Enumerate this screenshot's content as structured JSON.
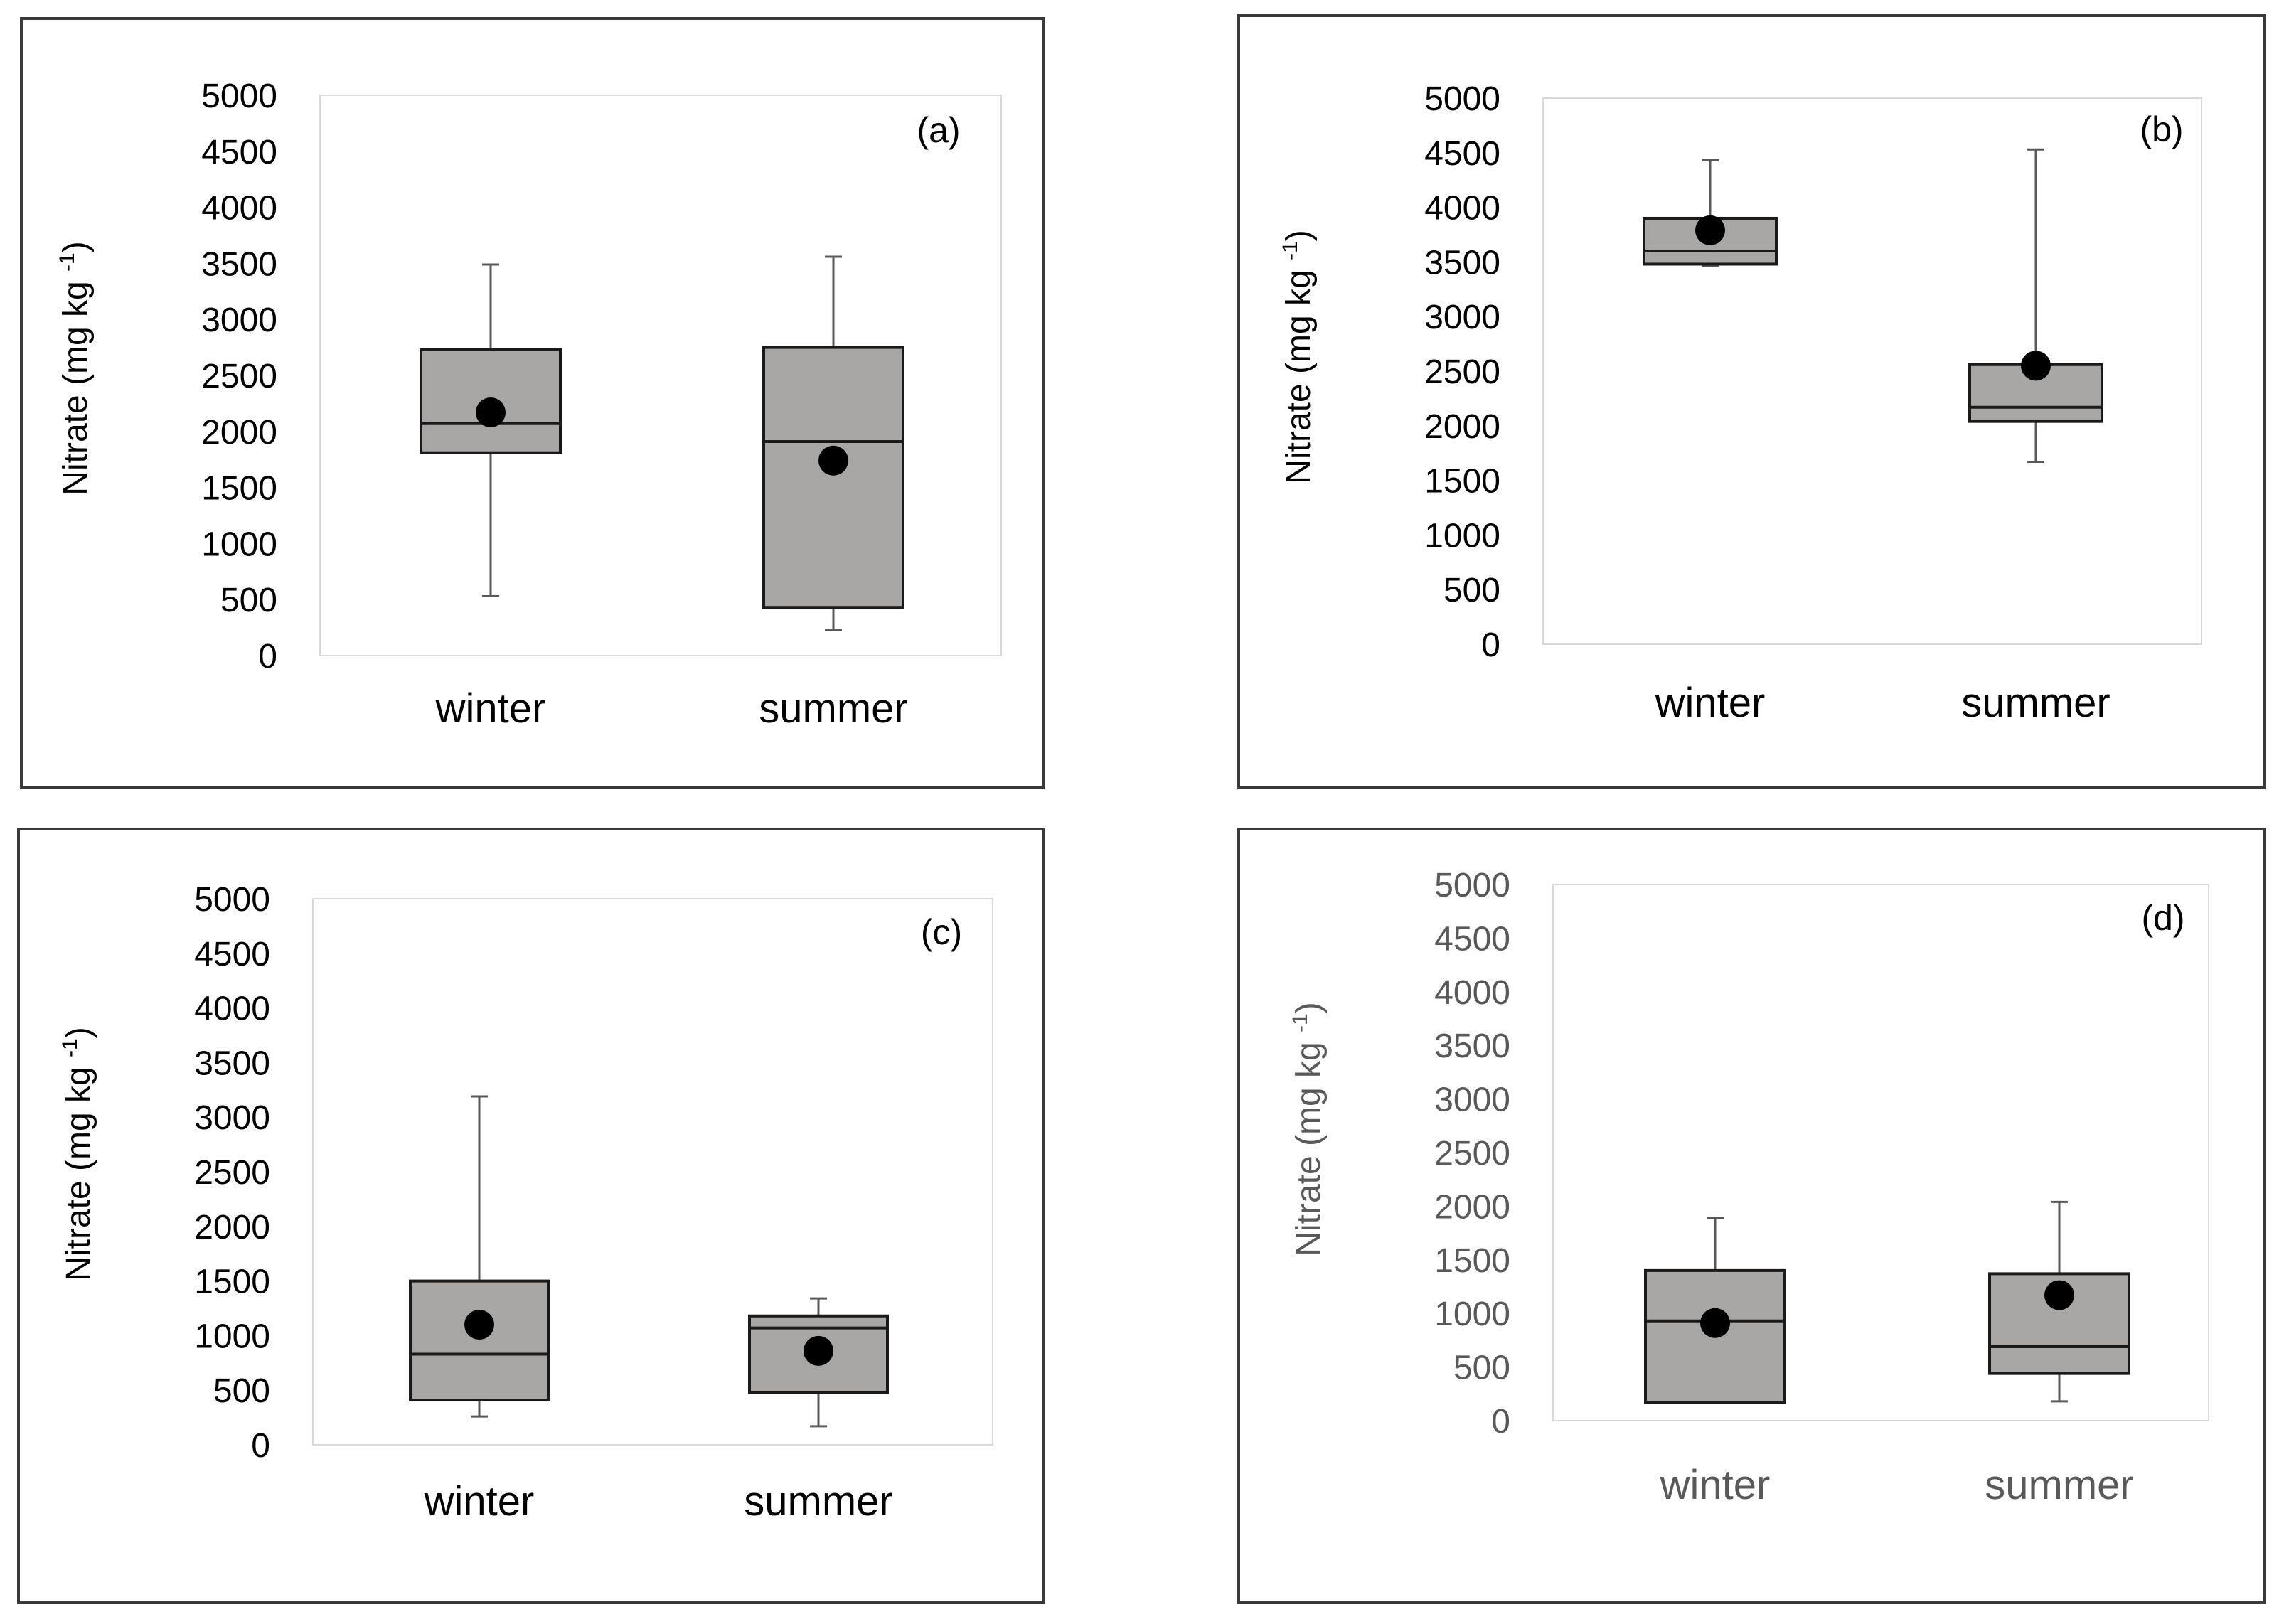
{
  "colors": {
    "box_fill": "#a9a6a6",
    "box_stroke": "#1a1a1a",
    "whisker": "#595959",
    "mean_marker": "#000000",
    "plot_border": "#d9d9d9",
    "text_dark": "#000000",
    "text_grey": "#595959"
  },
  "chart_data": [
    {
      "type": "box",
      "panel_label": "(a)",
      "ylabel": "Nitrate (mg kg",
      "ylabel_superscript": "-1",
      "ylabel_close": ")",
      "ylim": [
        0,
        5000
      ],
      "yticks": [
        "0",
        "500",
        "1000",
        "1500",
        "2000",
        "2500",
        "3000",
        "3500",
        "4000",
        "4500",
        "5000"
      ],
      "categories": [
        "winter",
        "summer"
      ],
      "series": [
        {
          "name": "winter",
          "min": 530,
          "q1": 1810,
          "median": 2070,
          "q3": 2730,
          "max": 3490,
          "mean": 2170
        },
        {
          "name": "summer",
          "min": 230,
          "q1": 430,
          "median": 1910,
          "q3": 2750,
          "max": 3560,
          "mean": 1740
        }
      ]
    },
    {
      "type": "box",
      "panel_label": "(b)",
      "ylabel": "Nitrate (mg kg",
      "ylabel_superscript": "-1",
      "ylabel_close": ")",
      "ylim": [
        0,
        5000
      ],
      "yticks": [
        "0",
        "500",
        "1000",
        "1500",
        "2000",
        "2500",
        "3000",
        "3500",
        "4000",
        "4500",
        "5000"
      ],
      "categories": [
        "winter",
        "summer"
      ],
      "series": [
        {
          "name": "winter",
          "min": 3460,
          "q1": 3480,
          "median": 3600,
          "q3": 3900,
          "max": 4430,
          "mean": 3790
        },
        {
          "name": "summer",
          "min": 1670,
          "q1": 2040,
          "median": 2170,
          "q3": 2560,
          "max": 4530,
          "mean": 2550
        }
      ]
    },
    {
      "type": "box",
      "panel_label": "(c)",
      "ylabel": "Nitrate (mg kg",
      "ylabel_superscript": "-1",
      "ylabel_close": ")",
      "ylim": [
        0,
        5000
      ],
      "yticks": [
        "0",
        "500",
        "1000",
        "1500",
        "2000",
        "2500",
        "3000",
        "3500",
        "4000",
        "4500",
        "5000"
      ],
      "categories": [
        "winter",
        "summer"
      ],
      "series": [
        {
          "name": "winter",
          "min": 260,
          "q1": 410,
          "median": 830,
          "q3": 1500,
          "max": 3190,
          "mean": 1100
        },
        {
          "name": "summer",
          "min": 170,
          "q1": 480,
          "median": 1070,
          "q3": 1180,
          "max": 1340,
          "mean": 860
        }
      ]
    },
    {
      "type": "box",
      "panel_label": "(d)",
      "ylabel": "Nitrate (mg kg",
      "ylabel_superscript": "-1",
      "ylabel_close": ")",
      "ylim": [
        0,
        5000
      ],
      "yticks": [
        "0",
        "500",
        "1000",
        "1500",
        "2000",
        "2500",
        "3000",
        "3500",
        "4000",
        "4500",
        "5000"
      ],
      "categories": [
        "winter",
        "summer"
      ],
      "series": [
        {
          "name": "winter",
          "min": 170,
          "q1": 170,
          "median": 930,
          "q3": 1400,
          "max": 1890,
          "mean": 910
        },
        {
          "name": "summer",
          "min": 180,
          "q1": 440,
          "median": 690,
          "q3": 1370,
          "max": 2040,
          "mean": 1170
        }
      ]
    }
  ]
}
